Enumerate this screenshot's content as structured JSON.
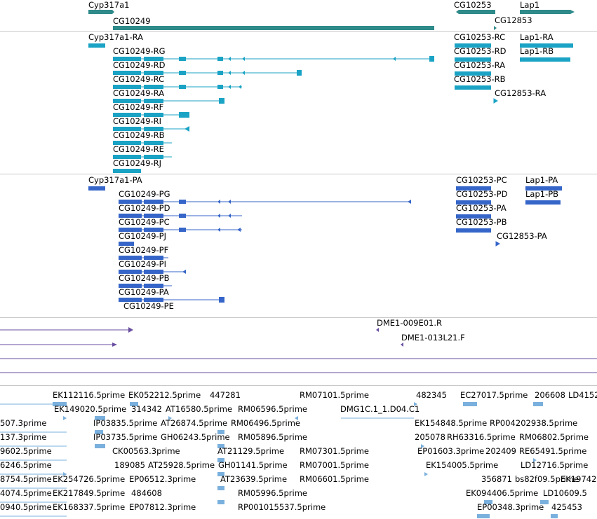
{
  "genes": {
    "color": "#2f8a8a",
    "labels": [
      "Cyp317a1",
      "CG10249",
      "CG10253",
      "CG12853",
      "Lap1"
    ]
  },
  "transcripts": {
    "color": "#1aa3c4",
    "labels": [
      "Cyp317a1-RA",
      "CG10249-RG",
      "CG10249-RD",
      "CG10249-RC",
      "CG10249-RA",
      "CG10249-RF",
      "CG10249-RI",
      "CG10249-RB",
      "CG10249-RE",
      "CG10249-RJ",
      "CG10253-RC",
      "CG10253-RD",
      "CG10253-RA",
      "CG10253-RB",
      "CG12853-RA",
      "Lap1-RA",
      "Lap1-RB"
    ]
  },
  "proteins": {
    "color": "#3565c8",
    "labels": [
      "Cyp317a1-PA",
      "CG10249-PG",
      "CG10249-PD",
      "CG10249-PC",
      "CG10249-PJ",
      "CG10249-PF",
      "CG10249-PI",
      "CG10249-PB",
      "CG10249-PA",
      "CG10249-PE",
      "CG10253-PC",
      "CG10253-PD",
      "CG10253-PA",
      "CG10253-PB",
      "CG12853-PA",
      "Lap1-PA",
      "Lap1-PB"
    ]
  },
  "clones": {
    "color": "#6a4fa0",
    "labels": [
      "DME1-009E01.R",
      "DME1-013L21.F"
    ]
  },
  "ests": {
    "color": "#7ab0dd",
    "labels": [
      "EK112116.5prime",
      "EK052212.5prime",
      "447281",
      "RM07101.5prime",
      "482345",
      "EC27017.5prime",
      "206608",
      "LD4152",
      "EK149020.5prime",
      "314342",
      "AT16580.5prime",
      "RM06596.5prime",
      "DMG1C.1_1.D04.C1",
      "507.3prime",
      "IP03835.5prime",
      "AT26874.5prime",
      "RM06496.5prime",
      "EK154848.5prime",
      "RP004202938.5prime",
      "137.3prime",
      "IP03735.5prime",
      "GH06243.5prime",
      "RM05896.5prime",
      "205078",
      "RH63316.5prime",
      "RM06802.5prime",
      "9602.5prime",
      "CK00563.3prime",
      "AT21129.5prime",
      "RM07301.5prime",
      "EP01603.3prime",
      "202409",
      "RE65491.5prime",
      "6246.5prime",
      "189085",
      "AT25928.5prime",
      "GH01141.5prime",
      "RM07001.5prime",
      "EK154005.5prime",
      "LD12716.5prime",
      "8754.5prime",
      "EK254726.5prime",
      "EP06512.3prime",
      "AT23639.5prime",
      "RM06601.5prime",
      "356871",
      "bs82f09.5prime",
      "EK19742",
      "4074.5prime",
      "EK217849.5prime",
      "484608",
      "EK094406.5prime",
      "LD10609.5",
      "0940.5prime",
      "EK168337.5prime",
      "EP07812.3prime",
      "RM05996.5prime",
      "RP001015537.5prime",
      "EP00348.3prime",
      "425453"
    ]
  }
}
